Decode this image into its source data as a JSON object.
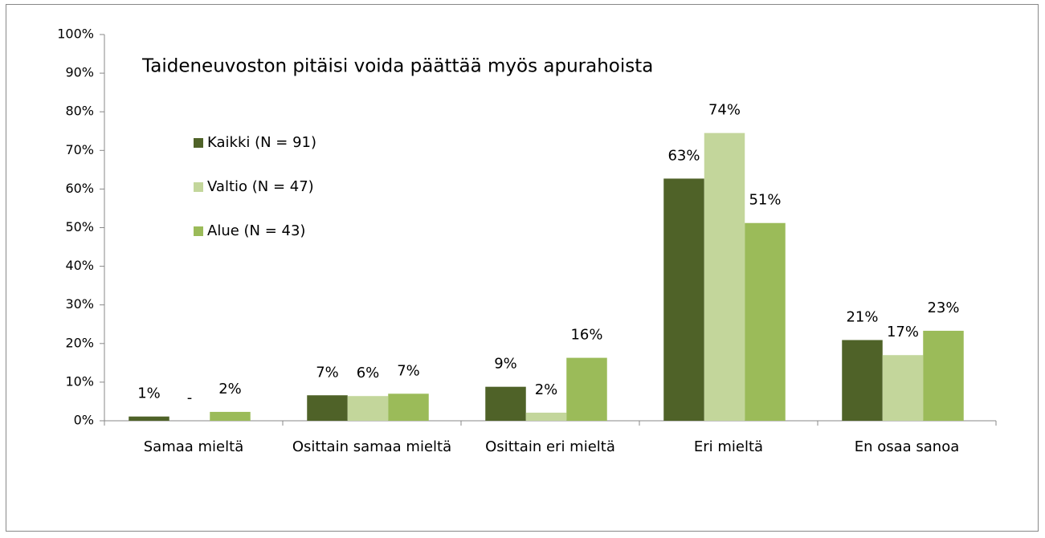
{
  "chart_data": {
    "type": "bar",
    "title": "Taideneuvoston pitäisi voida päättää myös apurahoista",
    "categories": [
      "Samaa mieltä",
      "Osittain samaa mieltä",
      "Osittain eri mieltä",
      "Eri mieltä",
      "En osaa sanoa"
    ],
    "series": [
      {
        "name": "Kaikki (N = 91)",
        "color": "#4f6228",
        "values": [
          1.1,
          6.6,
          8.8,
          62.7,
          20.9
        ],
        "value_labels": [
          "1%",
          "7%",
          "9%",
          "63%",
          "21%"
        ]
      },
      {
        "name": "Valtio (N = 47)",
        "color": "#c3d69b",
        "values": [
          0,
          6.4,
          2.1,
          74.5,
          17.0
        ],
        "value_labels": [
          "-",
          "6%",
          "2%",
          "74%",
          "17%"
        ]
      },
      {
        "name": "Alue (N = 43)",
        "color": "#9bbb59",
        "values": [
          2.3,
          7.0,
          16.3,
          51.2,
          23.3
        ],
        "value_labels": [
          "2%",
          "7%",
          "16%",
          "51%",
          "23%"
        ]
      }
    ],
    "ylim": [
      0,
      100
    ],
    "yticks": [
      {
        "value": 0,
        "label": "0%"
      },
      {
        "value": 10,
        "label": "10%"
      },
      {
        "value": 20,
        "label": "20%"
      },
      {
        "value": 30,
        "label": "30%"
      },
      {
        "value": 40,
        "label": "40%"
      },
      {
        "value": 50,
        "label": "50%"
      },
      {
        "value": 60,
        "label": "60%"
      },
      {
        "value": 70,
        "label": "70%"
      },
      {
        "value": 80,
        "label": "80%"
      },
      {
        "value": 90,
        "label": "90%"
      },
      {
        "value": 100,
        "label": "100%"
      }
    ],
    "legend": "upper left",
    "grid": false
  }
}
